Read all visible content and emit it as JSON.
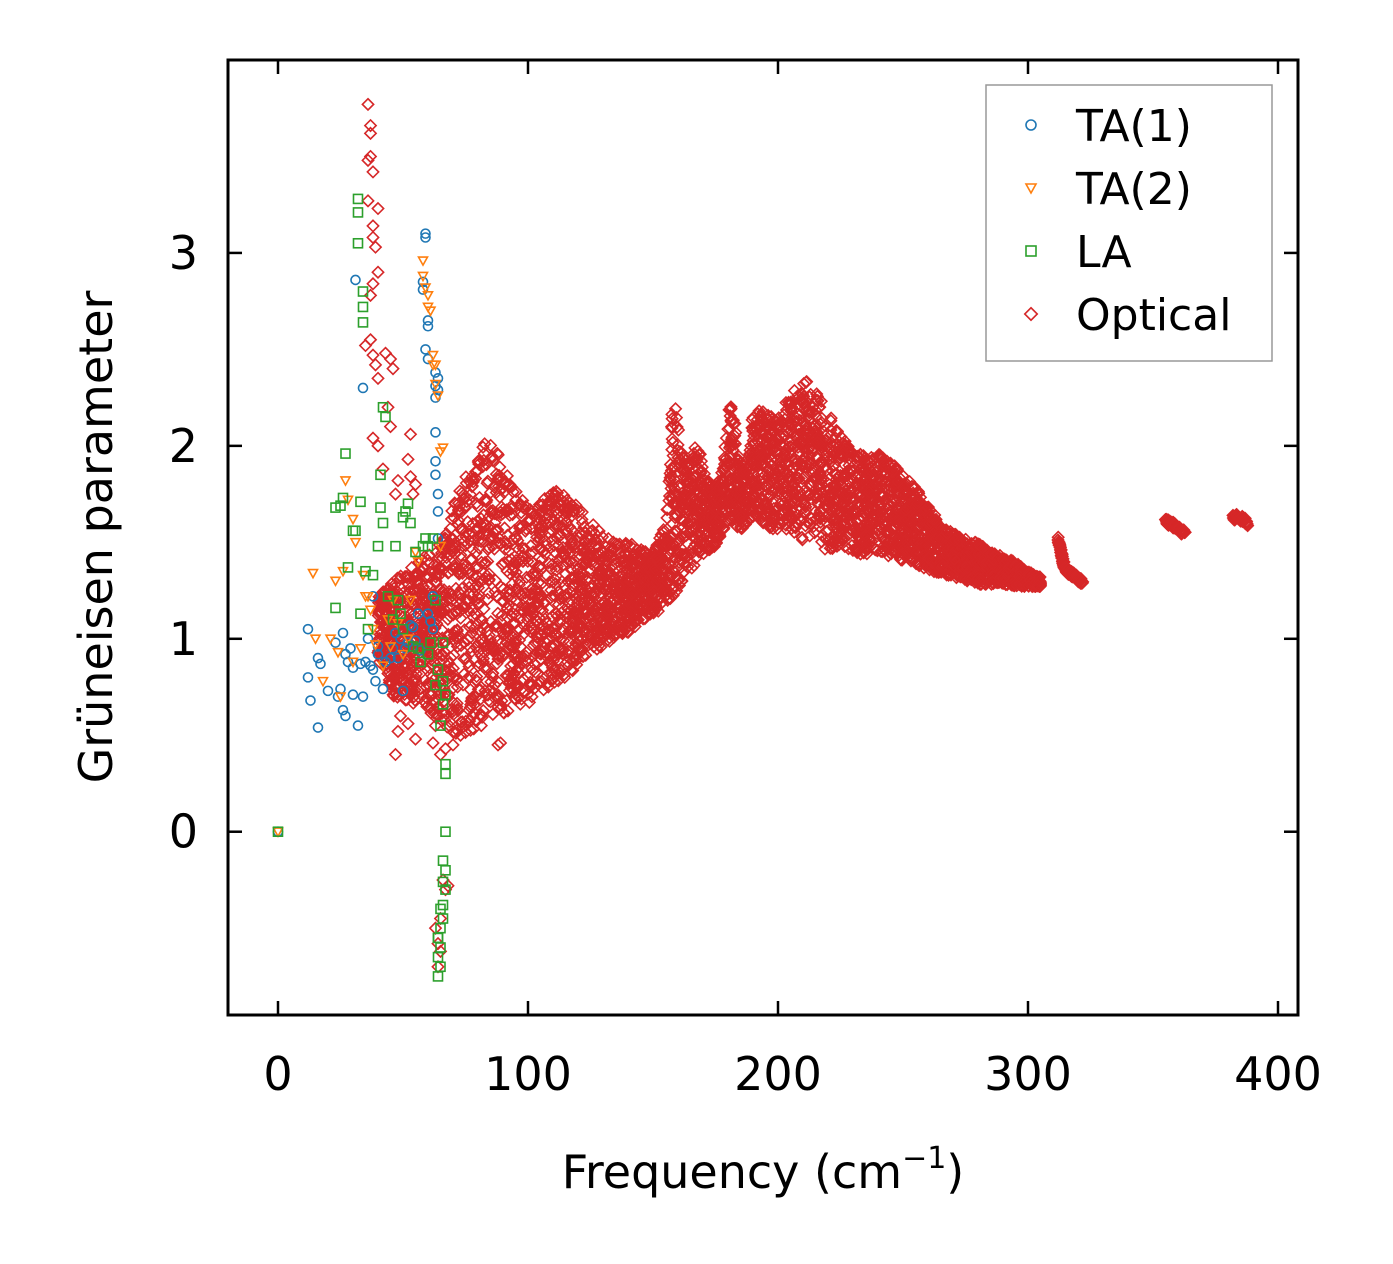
{
  "chart_data": {
    "type": "scatter",
    "title": "",
    "xlabel": "Frequency (cm",
    "xlabel_sup": "−1",
    "xlabel_close": ")",
    "ylabel": "Grüneisen parameter",
    "xlim": [
      -20,
      408
    ],
    "ylim": [
      -0.95,
      4.0
    ],
    "xticks": [
      0,
      100,
      200,
      300,
      400
    ],
    "xtick_labels": [
      "0",
      "100",
      "200",
      "300",
      "400"
    ],
    "yticks": [
      0,
      1,
      2,
      3
    ],
    "ytick_labels": [
      "0",
      "1",
      "2",
      "3"
    ],
    "grid": false,
    "legend_position": "top-right",
    "series": [
      {
        "name": "TA(1)",
        "marker": "circle",
        "color": "#1f77b4",
        "points": [
          [
            0,
            0
          ],
          [
            12,
            1.05
          ],
          [
            12,
            0.8
          ],
          [
            13,
            0.68
          ],
          [
            16,
            0.9
          ],
          [
            16,
            0.54
          ],
          [
            17,
            0.87
          ],
          [
            20,
            0.73
          ],
          [
            23,
            0.98
          ],
          [
            24,
            0.7
          ],
          [
            25,
            0.74
          ],
          [
            26,
            0.63
          ],
          [
            26,
            1.03
          ],
          [
            27,
            0.6
          ],
          [
            27,
            0.92
          ],
          [
            28,
            0.88
          ],
          [
            29,
            0.95
          ],
          [
            30,
            0.71
          ],
          [
            30,
            0.85
          ],
          [
            31,
            2.86
          ],
          [
            32,
            0.55
          ],
          [
            33,
            0.87
          ],
          [
            34,
            2.3
          ],
          [
            34,
            0.7
          ],
          [
            35,
            0.88
          ],
          [
            36,
            1.0
          ],
          [
            37,
            0.86
          ],
          [
            38,
            0.84
          ],
          [
            38,
            1.22
          ],
          [
            39,
            0.78
          ],
          [
            40,
            0.96
          ],
          [
            40,
            0.92
          ],
          [
            42,
            0.74
          ],
          [
            43,
            0.88
          ],
          [
            45,
            0.9
          ],
          [
            46,
            0.95
          ],
          [
            47,
            1.03
          ],
          [
            48,
            0.9
          ],
          [
            49,
            1.0
          ],
          [
            50,
            0.73
          ],
          [
            51,
            0.95
          ],
          [
            52,
            0.98
          ],
          [
            53,
            1.07
          ],
          [
            54,
            1.06
          ],
          [
            55,
            0.99
          ],
          [
            56,
            1.13
          ],
          [
            57,
            0.94
          ],
          [
            58,
            2.85
          ],
          [
            58,
            2.81
          ],
          [
            59,
            2.5
          ],
          [
            59,
            3.1
          ],
          [
            59,
            3.08
          ],
          [
            60,
            2.65
          ],
          [
            60,
            2.62
          ],
          [
            60,
            2.45
          ],
          [
            60,
            1.13
          ],
          [
            61,
            1.09
          ],
          [
            62,
            1.22
          ],
          [
            62,
            1.05
          ],
          [
            63,
            2.38
          ],
          [
            63,
            2.31
          ],
          [
            63,
            2.25
          ],
          [
            63,
            2.07
          ],
          [
            63,
            1.92
          ],
          [
            63,
            1.85
          ],
          [
            64,
            1.75
          ],
          [
            64,
            1.66
          ],
          [
            64,
            1.52
          ],
          [
            64,
            2.35
          ],
          [
            64,
            2.29
          ]
        ]
      },
      {
        "name": "TA(2)",
        "marker": "triangle-down",
        "color": "#ff7f0e",
        "points": [
          [
            0,
            0
          ],
          [
            14,
            1.34
          ],
          [
            15,
            1.0
          ],
          [
            18,
            0.78
          ],
          [
            21,
            1.0
          ],
          [
            23,
            1.3
          ],
          [
            24,
            0.93
          ],
          [
            25,
            0.7
          ],
          [
            26,
            1.35
          ],
          [
            27,
            1.82
          ],
          [
            28,
            1.72
          ],
          [
            30,
            1.62
          ],
          [
            30,
            0.88
          ],
          [
            31,
            1.5
          ],
          [
            33,
            0.95
          ],
          [
            34,
            1.33
          ],
          [
            35,
            1.22
          ],
          [
            36,
            1.22
          ],
          [
            37,
            1.15
          ],
          [
            38,
            1.05
          ],
          [
            39,
            0.97
          ],
          [
            42,
            0.86
          ],
          [
            44,
            1.1
          ],
          [
            45,
            0.96
          ],
          [
            46,
            1.2
          ],
          [
            48,
            1.08
          ],
          [
            50,
            0.92
          ],
          [
            52,
            1.0
          ],
          [
            53,
            1.2
          ],
          [
            55,
            1.45
          ],
          [
            56,
            1.4
          ],
          [
            58,
            2.96
          ],
          [
            58,
            2.88
          ],
          [
            59,
            2.82
          ],
          [
            60,
            2.78
          ],
          [
            60,
            2.72
          ],
          [
            61,
            2.7
          ],
          [
            62,
            2.47
          ],
          [
            62,
            2.42
          ],
          [
            63,
            2.42
          ],
          [
            63,
            2.32
          ],
          [
            64,
            2.26
          ],
          [
            65,
            1.97
          ],
          [
            65,
            1.48
          ],
          [
            66,
            1.99
          ]
        ]
      },
      {
        "name": "LA",
        "marker": "square",
        "color": "#2ca02c",
        "points": [
          [
            0,
            0
          ],
          [
            23,
            1.16
          ],
          [
            23,
            1.68
          ],
          [
            25,
            1.69
          ],
          [
            26,
            1.73
          ],
          [
            27,
            1.96
          ],
          [
            28,
            1.37
          ],
          [
            30,
            1.56
          ],
          [
            31,
            1.56
          ],
          [
            32,
            3.28
          ],
          [
            32,
            3.21
          ],
          [
            32,
            3.05
          ],
          [
            33,
            1.71
          ],
          [
            33,
            1.13
          ],
          [
            34,
            2.8
          ],
          [
            34,
            2.72
          ],
          [
            34,
            2.64
          ],
          [
            35,
            1.35
          ],
          [
            36,
            1.05
          ],
          [
            38,
            1.33
          ],
          [
            40,
            1.48
          ],
          [
            41,
            1.85
          ],
          [
            41,
            1.68
          ],
          [
            42,
            1.6
          ],
          [
            42,
            2.2
          ],
          [
            43,
            2.15
          ],
          [
            44,
            1.22
          ],
          [
            46,
            1.1
          ],
          [
            47,
            1.48
          ],
          [
            48,
            1.2
          ],
          [
            49,
            1.13
          ],
          [
            50,
            1.05
          ],
          [
            50,
            1.63
          ],
          [
            51,
            1.66
          ],
          [
            52,
            1.7
          ],
          [
            53,
            1.6
          ],
          [
            54,
            0.96
          ],
          [
            55,
            1.45
          ],
          [
            56,
            0.95
          ],
          [
            57,
            0.88
          ],
          [
            58,
            1.48
          ],
          [
            59,
            1.52
          ],
          [
            60,
            1.48
          ],
          [
            60,
            0.92
          ],
          [
            61,
            0.98
          ],
          [
            62,
            1.52
          ],
          [
            63,
            1.2
          ],
          [
            63,
            0.76
          ],
          [
            64,
            0.84
          ],
          [
            65,
            0.55
          ],
          [
            66,
            0.98
          ],
          [
            66,
            0.78
          ],
          [
            66,
            0.66
          ],
          [
            67,
            0.71
          ],
          [
            67,
            0.35
          ],
          [
            67,
            0.3
          ],
          [
            67,
            0.0
          ],
          [
            66,
            -0.15
          ],
          [
            67,
            -0.2
          ],
          [
            66,
            -0.26
          ],
          [
            67,
            -0.3
          ],
          [
            65,
            -0.4
          ],
          [
            66,
            -0.45
          ],
          [
            65,
            -0.5
          ],
          [
            64,
            -0.55
          ],
          [
            65,
            -0.6
          ],
          [
            64,
            -0.65
          ],
          [
            65,
            -0.7
          ],
          [
            64,
            -0.75
          ],
          [
            64,
            -0.55
          ],
          [
            66,
            -0.38
          ]
        ]
      },
      {
        "name": "Optical",
        "marker": "diamond",
        "color": "#d62728",
        "points": [
          [
            36,
            3.77
          ],
          [
            37,
            3.66
          ],
          [
            37,
            3.62
          ],
          [
            37,
            3.5
          ],
          [
            36,
            3.48
          ],
          [
            38,
            3.42
          ],
          [
            36,
            3.27
          ],
          [
            38,
            3.14
          ],
          [
            40,
            3.23
          ],
          [
            38,
            3.08
          ],
          [
            39,
            3.03
          ],
          [
            40,
            2.9
          ],
          [
            38,
            2.84
          ],
          [
            37,
            2.78
          ],
          [
            35,
            2.52
          ],
          [
            37,
            2.55
          ],
          [
            38,
            2.47
          ],
          [
            39,
            2.42
          ],
          [
            40,
            2.35
          ],
          [
            43,
            2.48
          ],
          [
            45,
            2.45
          ],
          [
            46,
            2.4
          ],
          [
            44,
            2.2
          ],
          [
            45,
            2.1
          ],
          [
            38,
            2.04
          ],
          [
            40,
            2.0
          ],
          [
            42,
            1.88
          ],
          [
            47,
            1.75
          ],
          [
            48,
            1.82
          ],
          [
            53,
            2.06
          ],
          [
            52,
            1.93
          ],
          [
            53,
            1.84
          ],
          [
            54,
            1.75
          ],
          [
            55,
            1.8
          ],
          [
            47,
            0.4
          ],
          [
            48,
            0.52
          ],
          [
            49,
            0.6
          ],
          [
            52,
            0.56
          ],
          [
            55,
            0.48
          ],
          [
            62,
            0.46
          ],
          [
            63,
            0.55
          ],
          [
            65,
            0.4
          ],
          [
            67,
            0.43
          ],
          [
            70,
            0.45
          ],
          [
            73,
            0.5
          ],
          [
            88,
            0.45
          ],
          [
            89,
            0.46
          ],
          [
            66,
            -0.25
          ],
          [
            67,
            -0.3
          ],
          [
            68,
            -0.28
          ],
          [
            65,
            -0.45
          ],
          [
            64,
            -0.58
          ],
          [
            64,
            -0.7
          ],
          [
            63,
            -0.5
          ],
          [
            65,
            -0.62
          ]
        ],
        "bands": [
          {
            "x": [
              40,
              45,
              50,
              55,
              60,
              65,
              70,
              75,
              80,
              85,
              90,
              95,
              100,
              105,
              110,
              115,
              120,
              125,
              130,
              135,
              140,
              145,
              150
            ],
            "lo": [
              0.9,
              0.7,
              0.68,
              0.65,
              0.62,
              0.55,
              0.48,
              0.5,
              0.52,
              0.55,
              0.6,
              0.62,
              0.65,
              0.7,
              0.75,
              0.78,
              0.85,
              0.92,
              0.95,
              1.0,
              1.02,
              1.08,
              1.12
            ],
            "hi": [
              1.22,
              1.3,
              1.35,
              1.4,
              1.45,
              1.5,
              1.7,
              1.85,
              1.95,
              2.1,
              1.9,
              1.78,
              1.7,
              1.72,
              1.8,
              1.75,
              1.7,
              1.62,
              1.55,
              1.52,
              1.5,
              1.48,
              1.45
            ]
          },
          {
            "x": [
              150,
              155,
              158,
              160,
              162,
              165,
              168,
              170,
              172,
              175,
              178,
              180,
              183,
              185,
              188,
              190,
              195,
              200,
              205,
              210,
              215,
              220,
              225,
              230,
              235,
              240,
              245,
              250,
              255,
              260,
              265,
              270,
              275,
              280,
              285,
              290,
              295,
              300,
              305
            ],
            "lo": [
              1.12,
              1.15,
              1.2,
              1.25,
              1.3,
              1.35,
              1.38,
              1.42,
              1.45,
              1.48,
              1.55,
              1.6,
              1.58,
              1.55,
              1.6,
              1.62,
              1.58,
              1.55,
              1.55,
              1.5,
              1.48,
              1.45,
              1.48,
              1.45,
              1.42,
              1.45,
              1.42,
              1.4,
              1.38,
              1.35,
              1.33,
              1.32,
              1.3,
              1.28,
              1.28,
              1.28,
              1.27,
              1.27,
              1.27
            ],
            "hi": [
              1.45,
              1.6,
              2.27,
              2.18,
              1.95,
              1.92,
              2.05,
              1.88,
              1.82,
              1.8,
              1.9,
              2.28,
              2.12,
              1.92,
              1.88,
              2.22,
              2.18,
              2.15,
              2.3,
              2.38,
              2.3,
              2.18,
              2.08,
              2.0,
              1.95,
              1.98,
              1.92,
              1.88,
              1.8,
              1.7,
              1.6,
              1.55,
              1.52,
              1.5,
              1.45,
              1.43,
              1.4,
              1.35,
              1.32
            ]
          }
        ],
        "tails": [
          {
            "x": [
              312,
              313,
              314,
              315,
              316,
              318,
              320,
              322
            ],
            "y": [
              1.52,
              1.46,
              1.4,
              1.36,
              1.35,
              1.33,
              1.31,
              1.29
            ]
          },
          {
            "x": [
              355,
              357,
              359,
              361,
              363
            ],
            "y": [
              1.61,
              1.6,
              1.58,
              1.56,
              1.55
            ]
          },
          {
            "x": [
              382,
              384,
              386,
              388
            ],
            "y": [
              1.63,
              1.63,
              1.62,
              1.6
            ]
          }
        ]
      }
    ]
  }
}
